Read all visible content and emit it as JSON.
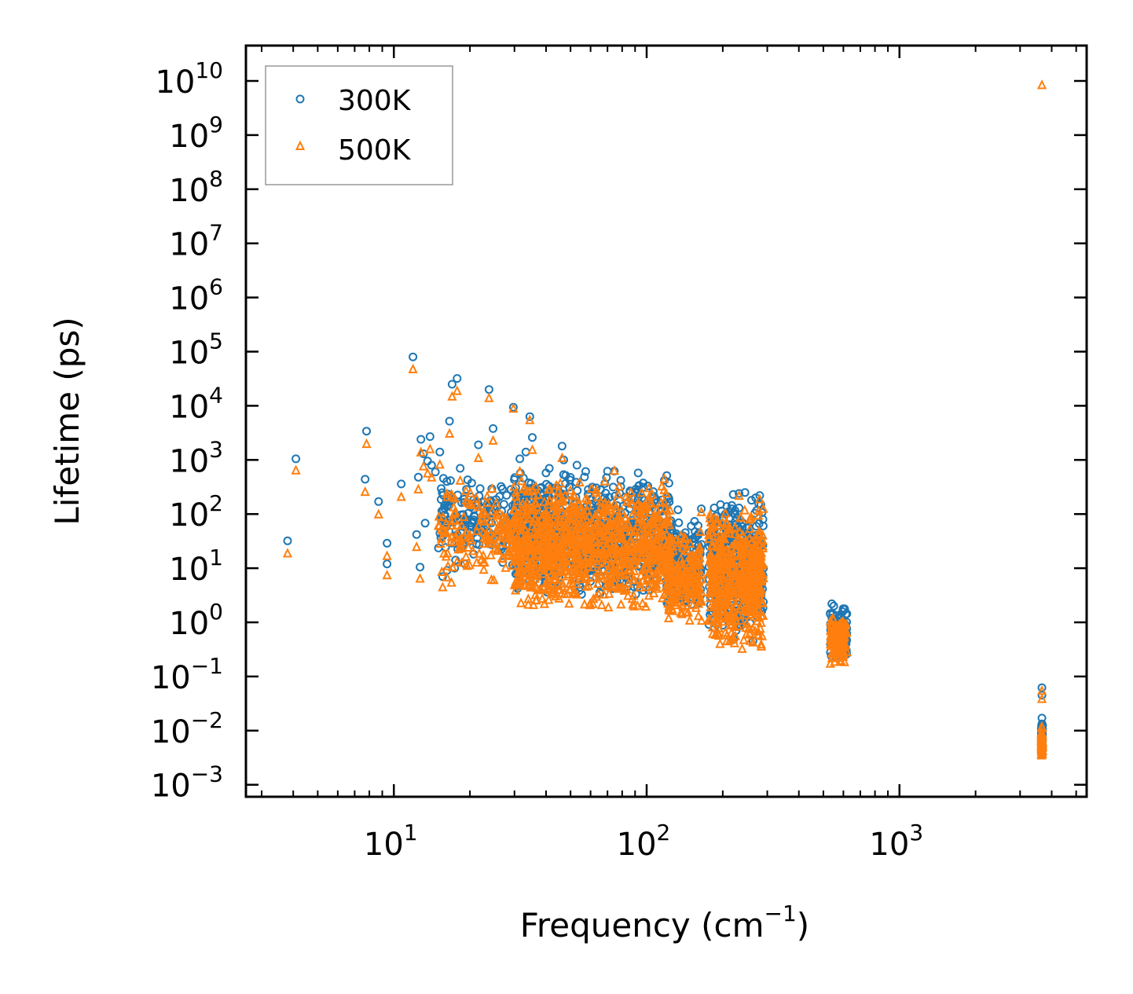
{
  "chart_data": {
    "type": "scatter",
    "title": "",
    "xlabel": "Frequency (cm",
    "xlabel_sup": "−1",
    "xlabel_close": ")",
    "ylabel": "Lifetime (ps)",
    "xscale": "log",
    "yscale": "log",
    "xlim": [
      2.6,
      5500
    ],
    "ylim": [
      0.0006,
      45000000000
    ],
    "legend_position": "top-left",
    "x_ticks": [
      {
        "value": 10,
        "base": "10",
        "exp": "1"
      },
      {
        "value": 100,
        "base": "10",
        "exp": "2"
      },
      {
        "value": 1000,
        "base": "10",
        "exp": "3"
      }
    ],
    "y_ticks": [
      {
        "value": 0.001,
        "base": "10",
        "exp": "−3"
      },
      {
        "value": 0.01,
        "base": "10",
        "exp": "−2"
      },
      {
        "value": 0.1,
        "base": "10",
        "exp": "−1"
      },
      {
        "value": 1.0,
        "base": "10",
        "exp": "0"
      },
      {
        "value": 10.0,
        "base": "10",
        "exp": "1"
      },
      {
        "value": 100.0,
        "base": "10",
        "exp": "2"
      },
      {
        "value": 1000.0,
        "base": "10",
        "exp": "3"
      },
      {
        "value": 10000.0,
        "base": "10",
        "exp": "4"
      },
      {
        "value": 100000.0,
        "base": "10",
        "exp": "5"
      },
      {
        "value": 1000000.0,
        "base": "10",
        "exp": "6"
      },
      {
        "value": 10000000.0,
        "base": "10",
        "exp": "7"
      },
      {
        "value": 100000000.0,
        "base": "10",
        "exp": "8"
      },
      {
        "value": 1000000000.0,
        "base": "10",
        "exp": "9"
      },
      {
        "value": 10000000000.0,
        "base": "10",
        "exp": "10"
      }
    ],
    "series": [
      {
        "name": "300K",
        "color": "#1f77b4",
        "marker": "circle",
        "points": [
          [
            3.8,
            32
          ],
          [
            4.1,
            1050
          ],
          [
            7.7,
            440
          ],
          [
            7.8,
            3400
          ],
          [
            8.7,
            170
          ],
          [
            9.4,
            29
          ],
          [
            9.4,
            12
          ],
          [
            10.7,
            360
          ],
          [
            11.9,
            80000
          ],
          [
            12.3,
            42
          ],
          [
            12.5,
            480
          ],
          [
            12.7,
            10.5
          ],
          [
            12.8,
            2400
          ],
          [
            13.1,
            1300
          ],
          [
            13.3,
            68
          ],
          [
            13.6,
            950
          ],
          [
            13.9,
            2700
          ],
          [
            14.1,
            800
          ],
          [
            14.6,
            600
          ],
          [
            15.2,
            1400
          ],
          [
            15.6,
            7
          ],
          [
            16.2,
            400
          ],
          [
            16.6,
            5200
          ],
          [
            17.0,
            25000
          ],
          [
            17.4,
            10
          ],
          [
            17.8,
            32000
          ],
          [
            18.3,
            700
          ],
          [
            19.1,
            12
          ],
          [
            19.6,
            430
          ],
          [
            21.6,
            1900
          ],
          [
            23.8,
            20000
          ],
          [
            24.7,
            3800
          ],
          [
            29.7,
            9400
          ],
          [
            31.5,
            1050
          ],
          [
            33.3,
            1400
          ],
          [
            34.5,
            6300
          ],
          [
            35.3,
            2600
          ],
          [
            41.2,
            700
          ],
          [
            46.3,
            1800
          ],
          [
            47.0,
            1000
          ],
          [
            53.0,
            800
          ],
          [
            70.0,
            620
          ],
          [
            74.5,
            620
          ],
          [
            79.0,
            420
          ],
          [
            96.0,
            200
          ],
          [
            117.5,
            420
          ],
          [
            133.0,
            120
          ],
          [
            150.0,
            60
          ],
          [
            164.5,
            125
          ],
          [
            185.0,
            130
          ],
          [
            196.0,
            150
          ],
          [
            205.0,
            100
          ],
          [
            220.0,
            230
          ],
          [
            232.0,
            240
          ],
          [
            245.0,
            250
          ],
          [
            260.0,
            180
          ],
          [
            270.0,
            200
          ],
          [
            280.0,
            220
          ],
          [
            283.0,
            150
          ],
          [
            272.0,
            10
          ],
          [
            540.0,
            2.2
          ],
          [
            550.0,
            2.0
          ],
          [
            595.0,
            0.55
          ],
          [
            605.0,
            0.4
          ],
          [
            3660.0,
            0.062
          ],
          [
            3660.0,
            0.045
          ],
          [
            3660.0,
            0.017
          ],
          [
            3660.0,
            0.012
          ]
        ]
      },
      {
        "name": "500K",
        "color": "#ff7f0e",
        "marker": "triangle",
        "points": [
          [
            3.8,
            19
          ],
          [
            4.1,
            650
          ],
          [
            7.7,
            260
          ],
          [
            7.8,
            2000
          ],
          [
            8.7,
            100
          ],
          [
            9.4,
            17
          ],
          [
            9.4,
            7.5
          ],
          [
            10.7,
            210
          ],
          [
            11.9,
            48000
          ],
          [
            12.3,
            25
          ],
          [
            12.5,
            290
          ],
          [
            12.7,
            6.5
          ],
          [
            12.8,
            1400
          ],
          [
            13.1,
            770
          ],
          [
            13.6,
            570
          ],
          [
            13.9,
            1600
          ],
          [
            14.1,
            480
          ],
          [
            15.2,
            830
          ],
          [
            15.6,
            4.5
          ],
          [
            16.2,
            240
          ],
          [
            16.6,
            3100
          ],
          [
            17.0,
            15000
          ],
          [
            17.8,
            19000
          ],
          [
            18.3,
            420
          ],
          [
            21.6,
            1100
          ],
          [
            23.8,
            14000
          ],
          [
            24.7,
            2300
          ],
          [
            29.7,
            9000
          ],
          [
            31.5,
            620
          ],
          [
            34.5,
            5500
          ],
          [
            35.3,
            1550
          ],
          [
            46.3,
            1100
          ],
          [
            74.5,
            640
          ],
          [
            117.5,
            450
          ],
          [
            164.5,
            110
          ],
          [
            232.0,
            220
          ],
          [
            280.0,
            190
          ],
          [
            545.0,
            1.2
          ],
          [
            600.0,
            0.3
          ],
          [
            3660.0,
            8500000000
          ],
          [
            3660.0,
            0.055
          ],
          [
            3660.0,
            0.039
          ],
          [
            3660.0,
            0.012
          ]
        ]
      }
    ],
    "bulk_clusters": [
      {
        "series": "300K",
        "xmin": 15,
        "xmax": 48,
        "ymin": 8,
        "ymax": 600,
        "n": 260,
        "seed": 11
      },
      {
        "series": "300K",
        "xmin": 30,
        "xmax": 125,
        "ymin": 2.5,
        "ymax": 650,
        "n": 700,
        "seed": 12
      },
      {
        "series": "300K",
        "xmin": 120,
        "xmax": 165,
        "ymin": 1.5,
        "ymax": 80,
        "n": 160,
        "seed": 13
      },
      {
        "series": "300K",
        "xmin": 176,
        "xmax": 290,
        "ymin": 0.4,
        "ymax": 200,
        "n": 400,
        "seed": 14
      },
      {
        "series": "300K",
        "xmin": 532,
        "xmax": 620,
        "ymin": 0.18,
        "ymax": 2.1,
        "n": 120,
        "seed": 15
      },
      {
        "series": "300K",
        "xmin": 3640,
        "xmax": 3680,
        "ymin": 0.004,
        "ymax": 0.016,
        "n": 80,
        "seed": 16
      },
      {
        "series": "500K",
        "xmin": 15,
        "xmax": 48,
        "ymin": 5,
        "ymax": 400,
        "n": 260,
        "seed": 21
      },
      {
        "series": "500K",
        "xmin": 30,
        "xmax": 125,
        "ymin": 1.5,
        "ymax": 450,
        "n": 900,
        "seed": 22
      },
      {
        "series": "500K",
        "xmin": 120,
        "xmax": 165,
        "ymin": 0.9,
        "ymax": 55,
        "n": 200,
        "seed": 23
      },
      {
        "series": "500K",
        "xmin": 176,
        "xmax": 290,
        "ymin": 0.28,
        "ymax": 140,
        "n": 520,
        "seed": 24
      },
      {
        "series": "500K",
        "xmin": 532,
        "xmax": 620,
        "ymin": 0.16,
        "ymax": 1.4,
        "n": 120,
        "seed": 25
      },
      {
        "series": "500K",
        "xmin": 3640,
        "xmax": 3680,
        "ymin": 0.003,
        "ymax": 0.012,
        "n": 80,
        "seed": 26
      }
    ]
  }
}
